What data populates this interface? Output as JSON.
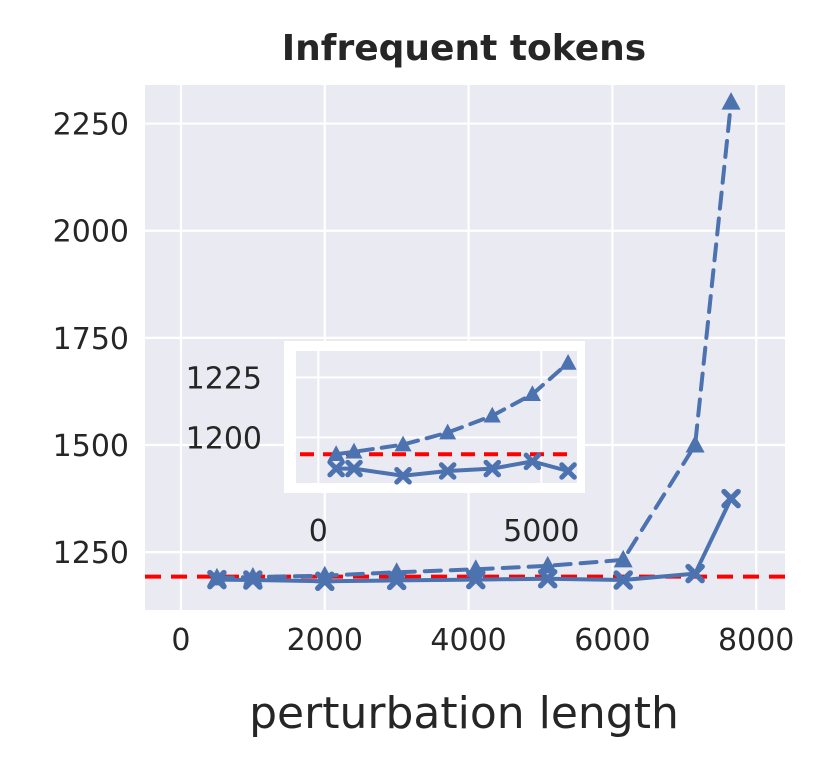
{
  "chart_data": [
    {
      "type": "line",
      "title": "Infrequent tokens",
      "xlabel": "perturbation length",
      "ylabel": "",
      "xlim": [
        -500,
        8400
      ],
      "ylim": [
        1115,
        2340
      ],
      "xticks": [
        0,
        2000,
        4000,
        6000,
        8000
      ],
      "yticks": [
        1250,
        1500,
        1750,
        2000,
        2250
      ],
      "xtick_labels": [
        "0",
        "2000",
        "4000",
        "6000",
        "8000"
      ],
      "ytick_labels": [
        "1250",
        "1500",
        "1750",
        "2000",
        "2250"
      ],
      "grid": true,
      "legend": "none",
      "background": "#eaeaf2",
      "series": [
        {
          "style": "dashed",
          "marker": "triangle",
          "color": "#4c72b0",
          "x": [
            500,
            1000,
            2000,
            3000,
            4100,
            5100,
            6150,
            7150,
            7650
          ],
          "values": [
            1190,
            1192,
            1195,
            1203,
            1210,
            1218,
            1232,
            1500,
            2300
          ]
        },
        {
          "style": "solid",
          "marker": "x",
          "color": "#4c72b0",
          "x": [
            500,
            1000,
            2000,
            3000,
            4100,
            5100,
            6150,
            7150,
            7650
          ],
          "values": [
            1186,
            1185,
            1182,
            1184,
            1186,
            1188,
            1185,
            1200,
            1375
          ]
        }
      ],
      "reference_line": {
        "y": 1193,
        "style": "dashed",
        "color": "#ff0000"
      }
    },
    {
      "type": "line",
      "inset": true,
      "xlim": [
        -500,
        5800
      ],
      "ylim": [
        1181,
        1236
      ],
      "xticks": [
        0,
        5000
      ],
      "yticks": [
        1200,
        1225
      ],
      "xtick_labels": [
        "0",
        "5000"
      ],
      "ytick_labels": [
        "1200",
        "1225"
      ],
      "grid": true,
      "background": "#eaeaf2",
      "series": [
        {
          "style": "dashed",
          "marker": "triangle",
          "color": "#4c72b0",
          "x": [
            400,
            800,
            1900,
            2900,
            3900,
            4800,
            5600
          ],
          "values": [
            1193,
            1194,
            1197,
            1202,
            1209,
            1218,
            1231
          ]
        },
        {
          "style": "solid",
          "marker": "x",
          "color": "#4c72b0",
          "x": [
            400,
            800,
            1900,
            2900,
            3900,
            4800,
            5600
          ],
          "values": [
            1187,
            1187,
            1184,
            1186,
            1187,
            1190,
            1186
          ]
        }
      ],
      "reference_line": {
        "y": 1193,
        "style": "dashed",
        "color": "#ff0000"
      }
    }
  ]
}
